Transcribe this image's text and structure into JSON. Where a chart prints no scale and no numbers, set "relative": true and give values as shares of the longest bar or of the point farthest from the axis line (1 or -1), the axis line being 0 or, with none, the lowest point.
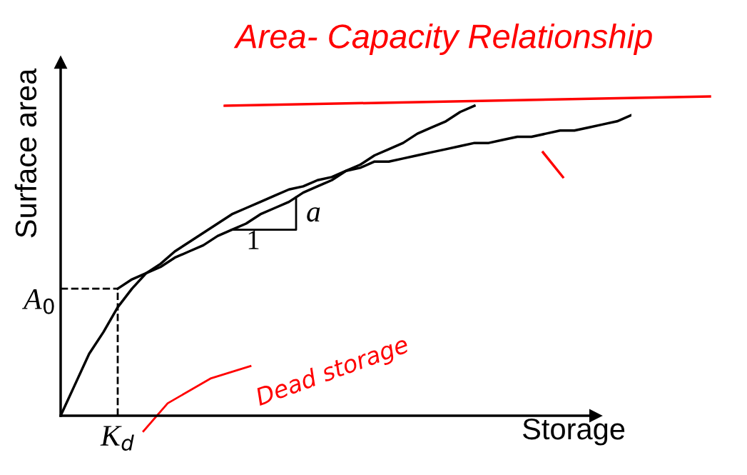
{
  "chart_data": {
    "type": "line",
    "relative": true,
    "title": "Area- Capacity Relationship",
    "xlabel": "Storage",
    "ylabel": "Surface area",
    "categories": [
      null,
      null,
      null,
      null,
      null,
      null,
      null,
      null,
      null,
      null,
      null,
      null,
      null,
      null,
      null,
      null,
      null,
      null,
      null,
      null,
      null,
      null,
      null,
      null,
      null,
      null,
      null,
      null,
      null,
      null,
      null,
      null,
      null,
      null,
      null,
      null,
      null,
      null,
      null,
      null,
      null
    ],
    "series": [
      {
        "color": "#000000",
        "values": [
          0,
          0.1,
          0.2,
          0.27,
          0.35,
          0.41,
          0.46,
          0.49,
          0.53,
          0.56,
          0.59,
          0.62,
          0.65,
          0.67,
          0.69,
          0.71,
          0.73,
          0.74,
          0.76,
          0.77,
          0.79,
          0.8,
          0.82,
          0.82,
          0.83,
          0.84,
          0.85,
          0.86,
          0.87,
          0.88,
          0.88,
          0.89,
          0.9,
          0.9,
          0.91,
          0.92,
          0.92,
          0.93,
          0.94,
          0.95,
          0.97
        ]
      },
      {
        "color": "#000000",
        "values": [
          null,
          null,
          null,
          null,
          0.41,
          0.44,
          0.46,
          0.48,
          0.51,
          0.53,
          0.55,
          0.58,
          0.6,
          0.62,
          0.65,
          0.67,
          0.69,
          0.72,
          0.74,
          0.76,
          0.79,
          0.81,
          0.84,
          0.86,
          0.88,
          0.91,
          0.93,
          0.95,
          0.98,
          1.0,
          null,
          null,
          null,
          null,
          null,
          null,
          null,
          null,
          null,
          null,
          null
        ]
      }
    ],
    "ref_lines": [
      {
        "axis": "y",
        "value": 0.41,
        "label": "A$_{0}$",
        "line_style": "dashed"
      }
    ],
    "annotations": [
      "1",
      "a",
      "Dead storage",
      "K$_{d}$"
    ],
    "legend": false,
    "grid": false
  }
}
